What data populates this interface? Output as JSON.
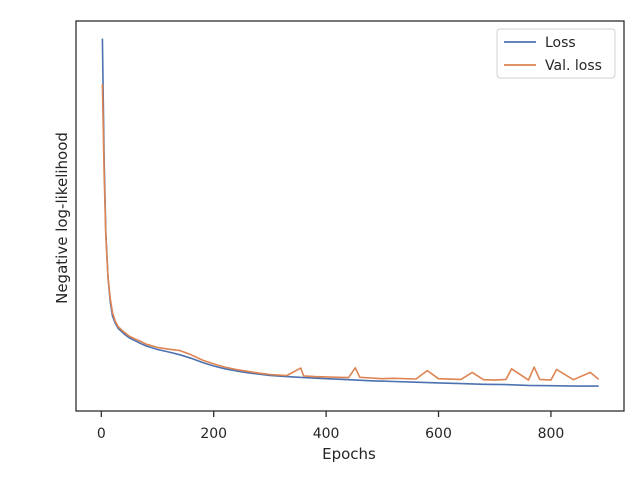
{
  "chart_data": {
    "type": "line",
    "title": "",
    "xlabel": "Epochs",
    "ylabel": "Negative log-likelihood",
    "xlim": [
      -45,
      930
    ],
    "x_ticks": [
      0,
      200,
      400,
      600,
      800
    ],
    "y_tick_labels_shown": false,
    "y_scale": "relative (no y tick labels printed; values normalized 0-1)",
    "ylim": [
      -0.06,
      1.05
    ],
    "grid": false,
    "legend_position": "top-right",
    "series": [
      {
        "name": "Loss",
        "color": "#4c72b0",
        "x": [
          2,
          5,
          8,
          12,
          16,
          20,
          25,
          30,
          40,
          50,
          60,
          70,
          80,
          100,
          120,
          140,
          160,
          180,
          200,
          220,
          240,
          260,
          280,
          300,
          330,
          360,
          400,
          440,
          480,
          520,
          560,
          600,
          640,
          680,
          720,
          760,
          800,
          840,
          885
        ],
        "y": [
          1.0,
          0.66,
          0.45,
          0.32,
          0.25,
          0.21,
          0.19,
          0.175,
          0.16,
          0.148,
          0.14,
          0.132,
          0.125,
          0.115,
          0.108,
          0.1,
          0.09,
          0.078,
          0.068,
          0.06,
          0.054,
          0.049,
          0.045,
          0.041,
          0.038,
          0.035,
          0.032,
          0.029,
          0.026,
          0.024,
          0.022,
          0.02,
          0.018,
          0.016,
          0.015,
          0.013,
          0.012,
          0.011,
          0.011
        ]
      },
      {
        "name": "Val. loss",
        "color": "#dd8452",
        "x": [
          2,
          5,
          8,
          12,
          16,
          20,
          25,
          30,
          40,
          50,
          60,
          70,
          80,
          100,
          120,
          140,
          160,
          180,
          200,
          220,
          240,
          260,
          280,
          300,
          330,
          355,
          360,
          380,
          400,
          420,
          440,
          452,
          460,
          480,
          500,
          520,
          560,
          580,
          600,
          640,
          660,
          680,
          700,
          720,
          730,
          760,
          770,
          780,
          800,
          810,
          840,
          870,
          885
        ],
        "y": [
          0.87,
          0.62,
          0.44,
          0.32,
          0.26,
          0.22,
          0.195,
          0.18,
          0.165,
          0.153,
          0.145,
          0.138,
          0.13,
          0.121,
          0.116,
          0.112,
          0.1,
          0.085,
          0.074,
          0.065,
          0.058,
          0.053,
          0.048,
          0.044,
          0.041,
          0.062,
          0.04,
          0.038,
          0.037,
          0.036,
          0.035,
          0.063,
          0.036,
          0.034,
          0.032,
          0.033,
          0.031,
          0.055,
          0.032,
          0.03,
          0.05,
          0.029,
          0.028,
          0.03,
          0.06,
          0.028,
          0.065,
          0.03,
          0.028,
          0.058,
          0.029,
          0.05,
          0.03
        ]
      }
    ]
  }
}
